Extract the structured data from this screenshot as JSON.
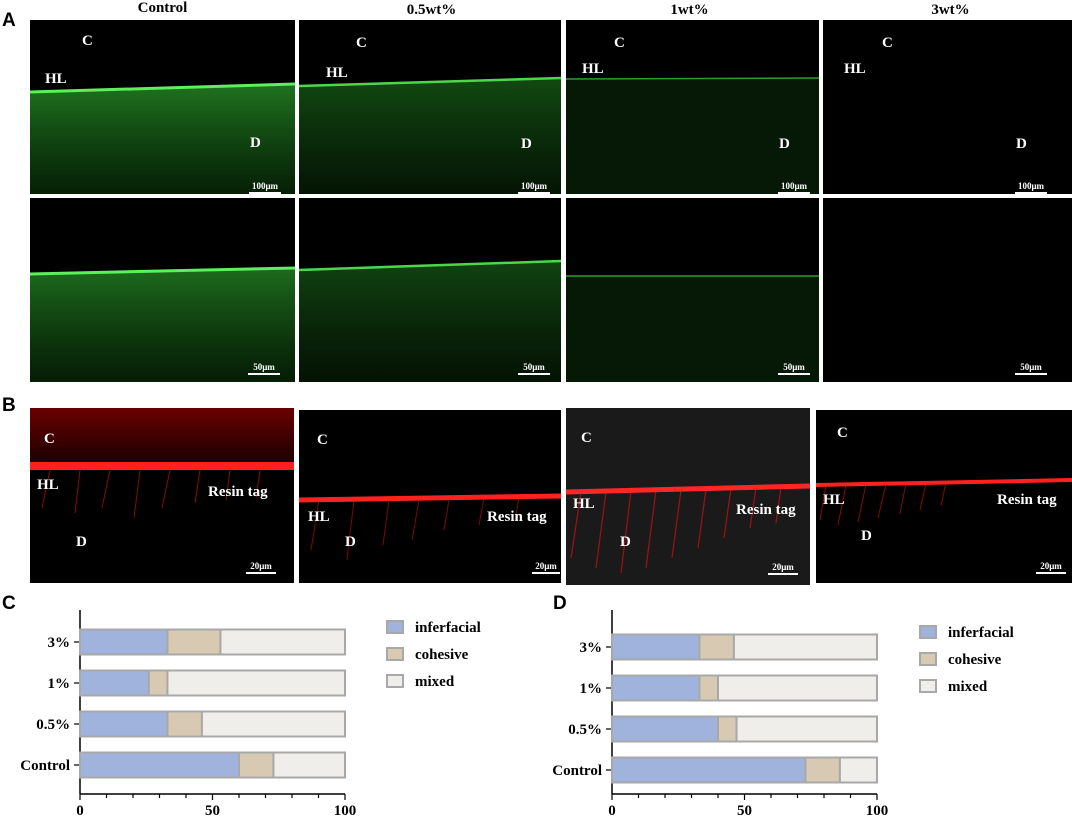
{
  "panel_letters": {
    "a": "A",
    "b": "B",
    "c": "C",
    "d": "D"
  },
  "columns": [
    "Control",
    "0.5wt%",
    "1wt%",
    "3wt%"
  ],
  "labels": {
    "composite": "C",
    "hybrid_layer": "HL",
    "dentin": "D",
    "resin_tag": "Resin tag"
  },
  "scale_bars": {
    "row1": "100μm",
    "row2": "50μm",
    "rowB": "20μm"
  },
  "panel_a_intensity": {
    "row1": [
      1.0,
      0.8,
      0.35,
      0.05
    ],
    "row2": [
      1.0,
      0.8,
      0.35,
      0.03
    ]
  },
  "colors": {
    "green": "#3fd13f",
    "red": "#ff1a1a",
    "interfacial": "#9fb3dc",
    "cohesive": "#d8cab2",
    "mixed": "#f0eeea",
    "outline": "#a8a8a8"
  },
  "chart_data": [
    {
      "type": "bar",
      "orientation": "horizontal",
      "stacked": true,
      "categories": [
        "3%",
        "1%",
        "0.5%",
        "Control"
      ],
      "series": [
        {
          "name": "inferfacial",
          "values": [
            33,
            26,
            33,
            60
          ]
        },
        {
          "name": "cohesive",
          "values": [
            20,
            7,
            13,
            13
          ]
        },
        {
          "name": "mixed",
          "values": [
            47,
            67,
            54,
            27
          ]
        }
      ],
      "xlim": [
        0,
        100
      ],
      "xticks": [
        0,
        50,
        100
      ],
      "legend": "right"
    },
    {
      "type": "bar",
      "orientation": "horizontal",
      "stacked": true,
      "categories": [
        "3%",
        "1%",
        "0.5%",
        "Control"
      ],
      "series": [
        {
          "name": "inferfacial",
          "values": [
            33,
            33,
            40,
            73
          ]
        },
        {
          "name": "cohesive",
          "values": [
            13,
            7,
            7,
            13
          ]
        },
        {
          "name": "mixed",
          "values": [
            54,
            60,
            53,
            14
          ]
        }
      ],
      "xlim": [
        0,
        100
      ],
      "xticks": [
        0,
        50,
        100
      ],
      "legend": "right"
    }
  ]
}
